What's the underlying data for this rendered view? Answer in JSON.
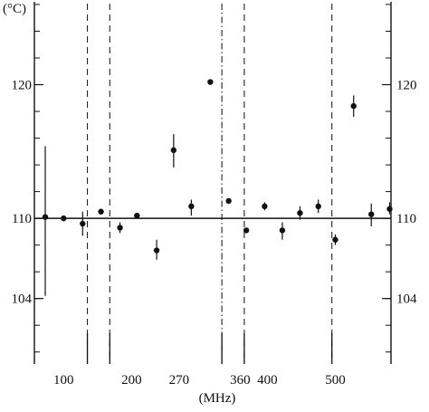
{
  "chart_data": {
    "type": "scatter",
    "title": "",
    "ylabel": "(°C)",
    "xlabel": "(MHz)",
    "ylim": [
      99.1,
      126.2
    ],
    "xlim": [
      57,
      582
    ],
    "grid": false,
    "reference_line": 110,
    "y_ticks": [
      {
        "value": 120,
        "label": "120"
      },
      {
        "value": 110,
        "label": "110"
      },
      {
        "value": 104,
        "label": "104"
      }
    ],
    "y_minor_step": 2,
    "x_ticks": [
      {
        "value": 100,
        "label": "100"
      },
      {
        "value": 200,
        "label": "200"
      },
      {
        "value": 270,
        "label": "270"
      },
      {
        "value": 360,
        "label": "360"
      },
      {
        "value": 400,
        "label": "400"
      },
      {
        "value": 500,
        "label": "500"
      }
    ],
    "dashed_markers": [
      {
        "style": "dashed",
        "x": 135
      },
      {
        "style": "dashed",
        "x": 168
      },
      {
        "style": "dashdot",
        "x": 333
      },
      {
        "style": "dashed",
        "x": 366
      },
      {
        "style": "dashed",
        "x": 495
      }
    ],
    "x_bottom_ticks": [
      135,
      168,
      333,
      366,
      495
    ],
    "points": [
      {
        "x": 73,
        "y": 110.1,
        "yerr_low": 104.2,
        "yerr_high": 115.4
      },
      {
        "x": 100,
        "y": 110.0,
        "yerr_low": 109.8,
        "yerr_high": 110.2
      },
      {
        "x": 128,
        "y": 109.6,
        "yerr_low": 108.7,
        "yerr_high": 110.5
      },
      {
        "x": 155,
        "y": 110.5,
        "yerr_low": 110.3,
        "yerr_high": 110.7
      },
      {
        "x": 183,
        "y": 109.3,
        "yerr_low": 108.9,
        "yerr_high": 109.7
      },
      {
        "x": 208,
        "y": 110.2,
        "yerr_low": 110.0,
        "yerr_high": 110.4
      },
      {
        "x": 237,
        "y": 107.6,
        "yerr_low": 106.9,
        "yerr_high": 108.4
      },
      {
        "x": 262,
        "y": 115.1,
        "yerr_low": 113.8,
        "yerr_high": 116.3
      },
      {
        "x": 288,
        "y": 110.9,
        "yerr_low": 110.2,
        "yerr_high": 111.4
      },
      {
        "x": 316,
        "y": 120.2,
        "yerr_low": 120.0,
        "yerr_high": 120.4
      },
      {
        "x": 343,
        "y": 111.3,
        "yerr_low": 111.1,
        "yerr_high": 111.5
      },
      {
        "x": 369,
        "y": 109.1,
        "yerr_low": 108.9,
        "yerr_high": 109.3
      },
      {
        "x": 396,
        "y": 110.9,
        "yerr_low": 110.6,
        "yerr_high": 111.2
      },
      {
        "x": 422,
        "y": 109.1,
        "yerr_low": 108.4,
        "yerr_high": 109.7
      },
      {
        "x": 448,
        "y": 110.4,
        "yerr_low": 109.9,
        "yerr_high": 110.9
      },
      {
        "x": 475,
        "y": 110.9,
        "yerr_low": 110.4,
        "yerr_high": 111.4
      },
      {
        "x": 500,
        "y": 108.4,
        "yerr_low": 108.0,
        "yerr_high": 108.8
      },
      {
        "x": 527,
        "y": 118.4,
        "yerr_low": 117.6,
        "yerr_high": 119.2
      },
      {
        "x": 553,
        "y": 110.3,
        "yerr_low": 109.4,
        "yerr_high": 111.1
      },
      {
        "x": 580,
        "y": 110.7,
        "yerr_low": 110.3,
        "yerr_high": 111.2
      }
    ]
  }
}
